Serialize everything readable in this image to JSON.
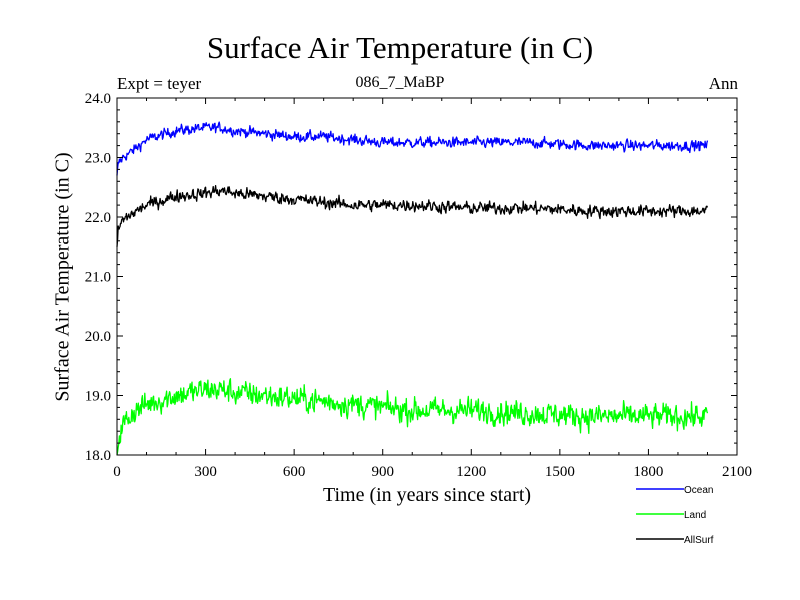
{
  "chart_data": {
    "type": "line",
    "title": "Surface Air Temperature (in C)",
    "subtitle": "086_7_MaBP",
    "expt_label": "Expt = teyer",
    "season_label": "Ann",
    "xlabel": "Time (in years since start)",
    "ylabel": "Surface Air Temperature (in C)",
    "xlim": [
      0,
      2100
    ],
    "ylim": [
      18.0,
      24.0
    ],
    "x_ticks": [
      0,
      300,
      600,
      900,
      1200,
      1500,
      1800,
      2100
    ],
    "x_tick_labels": [
      "0",
      "300",
      "600",
      "900",
      "1200",
      "1500",
      "1800",
      "2100"
    ],
    "y_ticks": [
      18.0,
      19.0,
      20.0,
      21.0,
      22.0,
      23.0,
      24.0
    ],
    "y_tick_labels": [
      "18.0",
      "19.0",
      "20.0",
      "21.0",
      "22.0",
      "23.0",
      "24.0"
    ],
    "legend_position": "bottom-right, below plot",
    "series": [
      {
        "name": "Ocean",
        "color": "#0000ff",
        "x": [
          0,
          5,
          20,
          50,
          100,
          200,
          300,
          350,
          400,
          500,
          600,
          700,
          800,
          900,
          1000,
          1200,
          1400,
          1600,
          1800,
          1900,
          2000
        ],
        "values": [
          22.7,
          22.9,
          23.0,
          23.1,
          23.3,
          23.45,
          23.5,
          23.5,
          23.45,
          23.4,
          23.35,
          23.35,
          23.3,
          23.25,
          23.25,
          23.25,
          23.25,
          23.2,
          23.2,
          23.2,
          23.2
        ],
        "noise": 0.06
      },
      {
        "name": "Land",
        "color": "#00ff00",
        "x": [
          0,
          5,
          20,
          50,
          100,
          200,
          300,
          350,
          400,
          500,
          600,
          700,
          800,
          900,
          1000,
          1200,
          1400,
          1600,
          1800,
          1900,
          2000
        ],
        "values": [
          18.0,
          18.3,
          18.5,
          18.7,
          18.85,
          19.0,
          19.1,
          19.1,
          19.05,
          19.0,
          18.95,
          18.9,
          18.85,
          18.8,
          18.75,
          18.75,
          18.7,
          18.65,
          18.65,
          18.65,
          18.65
        ],
        "noise": 0.14
      },
      {
        "name": "AllSurf",
        "color": "#000000",
        "x": [
          0,
          5,
          20,
          50,
          100,
          200,
          300,
          350,
          400,
          500,
          600,
          700,
          800,
          900,
          1000,
          1200,
          1400,
          1600,
          1800,
          1900,
          2000
        ],
        "values": [
          21.5,
          21.8,
          21.95,
          22.05,
          22.2,
          22.35,
          22.4,
          22.45,
          22.4,
          22.35,
          22.3,
          22.25,
          22.2,
          22.2,
          22.2,
          22.15,
          22.15,
          22.1,
          22.1,
          22.1,
          22.1
        ],
        "noise": 0.07
      }
    ]
  }
}
